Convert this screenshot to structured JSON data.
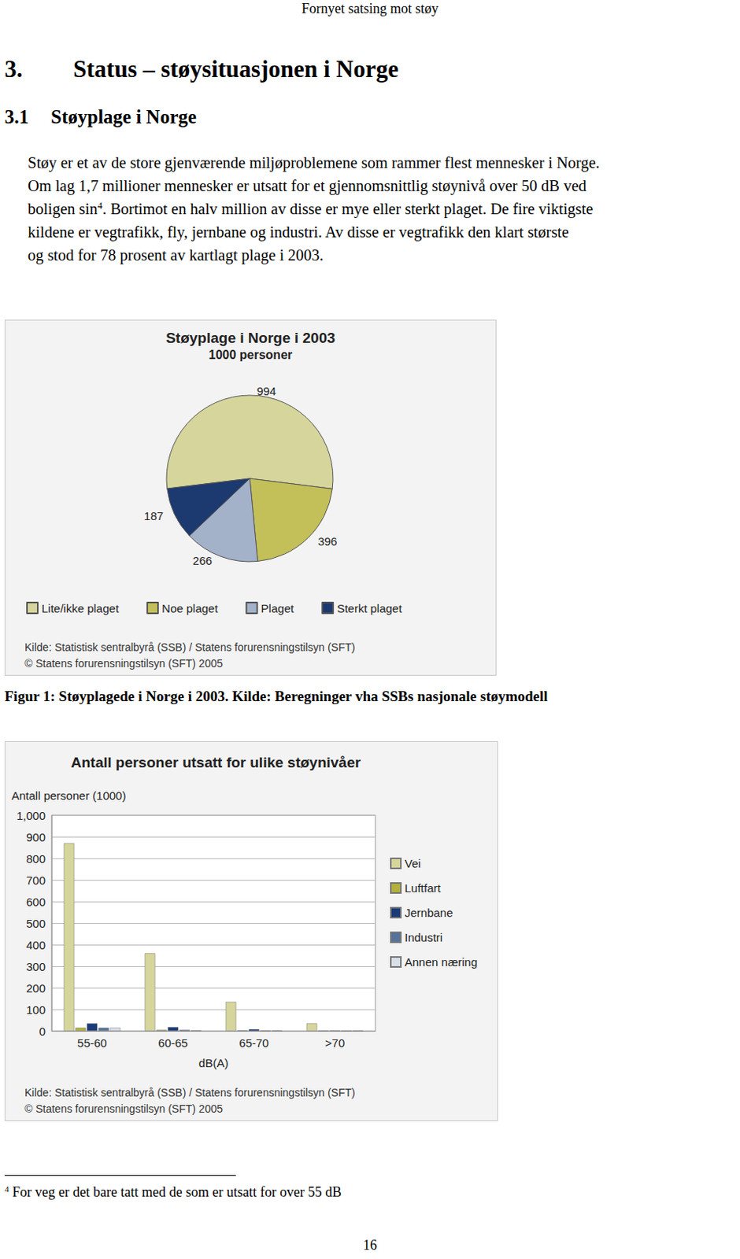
{
  "header": "Fornyet satsing mot støy",
  "heading1": {
    "number": "3.",
    "text": "Status – støysituasjonen i Norge"
  },
  "heading2": {
    "number": "3.1",
    "text": "Støyplage i Norge"
  },
  "paragraph": [
    [
      {
        "text": "Støy er et av de store gjenværende miljøproblemene som rammer flest mennesker i Norge."
      }
    ],
    [
      {
        "text": "Om lag 1,7 millioner mennesker er utsatt for et gjennomsnittlig støynivå over 50 dB ved"
      }
    ],
    [
      {
        "text": "boligen sin"
      },
      {
        "text": "4",
        "superscript": true
      },
      {
        "text": ". Bortimot en halv million av disse er mye eller sterkt plaget. De fire viktigste"
      }
    ],
    [
      {
        "text": "kildene er vegtrafikk, fly, jernbane og industri. Av disse er vegtrafikk den klart største"
      }
    ],
    [
      {
        "text": "og stod for 78 prosent av kartlagt plage i 2003."
      }
    ]
  ],
  "chart_data": [
    {
      "type": "pie",
      "title": "Støyplage i Norge i 2003",
      "subtitle": "1000 personer",
      "categories": [
        "Lite/ikke plaget",
        "Noe plaget",
        "Plaget",
        "Sterkt plaget"
      ],
      "values": [
        994,
        396,
        266,
        187
      ],
      "colors": [
        "#d6d59c",
        "#c3c05a",
        "#a3b2c9",
        "#1c3a70"
      ],
      "data_labels": true,
      "legend": "bottom",
      "annotations": [
        "Kilde: Statistisk sentralbyrå (SSB) / Statens forurensningstilsyn (SFT)",
        "© Statens forurensningstilsyn (SFT) 2005"
      ]
    },
    {
      "type": "bar",
      "title": "Antall personer utsatt for ulike støynivåer",
      "y_label": "Antall personer (1000)",
      "x_label": "dB(A)",
      "categories": [
        "55-60",
        "60-65",
        "65-70",
        ">70"
      ],
      "series": [
        {
          "name": "Vei",
          "color": "#d6d59c",
          "values": [
            870,
            360,
            135,
            35
          ]
        },
        {
          "name": "Luftfart",
          "color": "#b3b03c",
          "values": [
            15,
            5,
            2,
            0
          ]
        },
        {
          "name": "Jernbane",
          "color": "#1a3a78",
          "values": [
            35,
            18,
            8,
            1
          ]
        },
        {
          "name": "Industri",
          "color": "#55739a",
          "values": [
            15,
            5,
            1,
            0
          ]
        },
        {
          "name": "Annen næring",
          "color": "#d9dfe9",
          "values": [
            15,
            3,
            1,
            0
          ]
        }
      ],
      "ylim": [
        0,
        1000
      ],
      "yticks": [
        0,
        100,
        200,
        300,
        400,
        500,
        600,
        700,
        800,
        900,
        1000
      ],
      "grid": true,
      "legend": "right",
      "annotations": [
        "Kilde: Statistisk sentralbyrå (SSB) / Statens forurensningstilsyn (SFT)",
        "© Statens forurensningstilsyn (SFT) 2005"
      ]
    }
  ],
  "caption": "Figur 1: Støyplagede i Norge i 2003. Kilde: Beregninger vha SSBs nasjonale støymodell",
  "footnote": {
    "mark": "4",
    "text": "For veg er det bare tatt med de som er utsatt for over 55 dB"
  },
  "page_number": "16"
}
